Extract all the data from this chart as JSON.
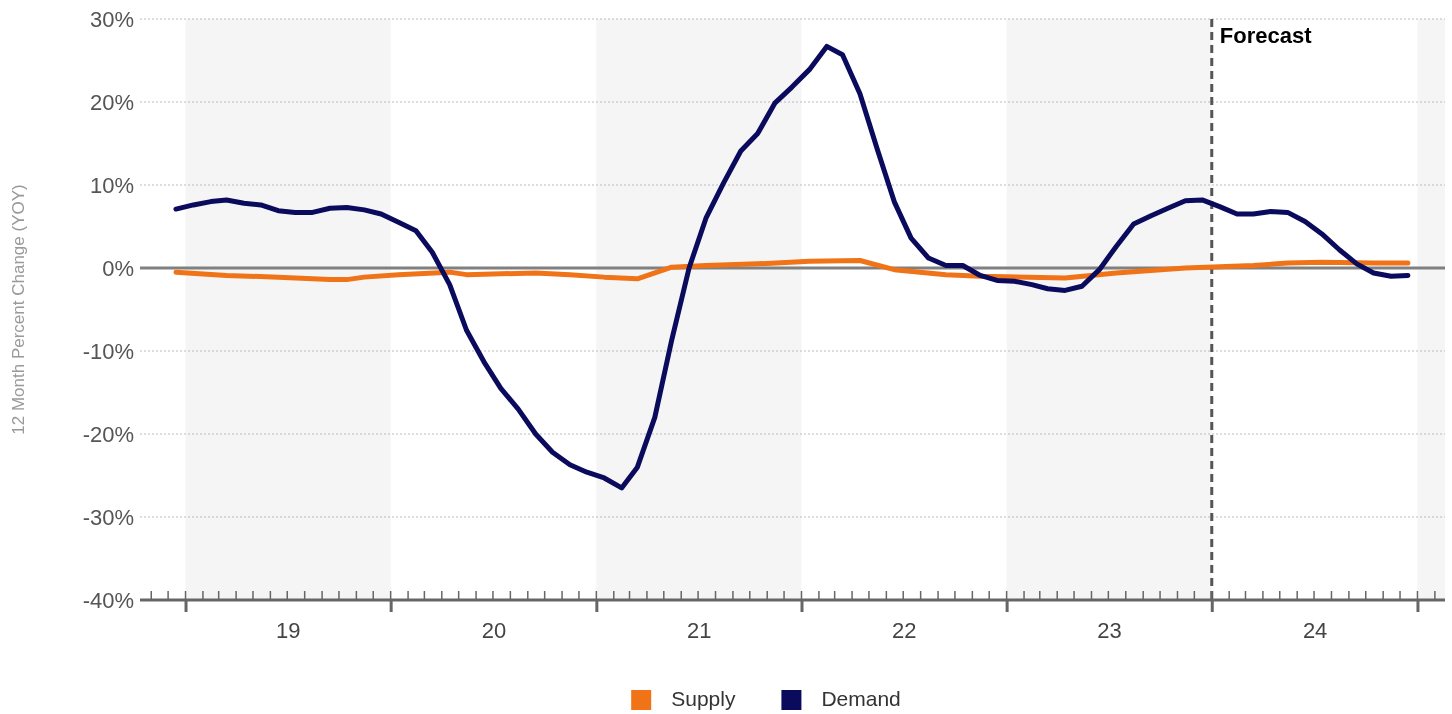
{
  "chart_data": {
    "type": "line",
    "ylabel": "12 Month Percent Change (YOY)",
    "xlim": [
      "2018-10-12",
      "2025-02-19"
    ],
    "xticks": [
      {
        "value": "2019-01-01",
        "label": null
      },
      {
        "value": "2019-07-02",
        "label": "19"
      },
      {
        "value": "2020-01-01",
        "label": null
      },
      {
        "value": "2020-07-02",
        "label": "20"
      },
      {
        "value": "2021-01-01",
        "label": null
      },
      {
        "value": "2021-07-02",
        "label": "21"
      },
      {
        "value": "2022-01-01",
        "label": null
      },
      {
        "value": "2022-07-02",
        "label": "22"
      },
      {
        "value": "2023-01-01",
        "label": null
      },
      {
        "value": "2023-07-02",
        "label": "23"
      },
      {
        "value": "2024-01-01",
        "label": null
      },
      {
        "value": "2024-07-02",
        "label": "24"
      },
      {
        "value": "2025-01-01",
        "label": null
      }
    ],
    "ylim": [
      -40,
      30
    ],
    "yticks": [
      {
        "value": -40,
        "label": "-40%"
      },
      {
        "value": -30,
        "label": "-30%"
      },
      {
        "value": -20,
        "label": "-20%"
      },
      {
        "value": -10,
        "label": "-10%"
      },
      {
        "value": 0,
        "label": "0%"
      },
      {
        "value": 10,
        "label": "10%"
      },
      {
        "value": 20,
        "label": "20%"
      },
      {
        "value": 30,
        "label": "30%"
      }
    ],
    "grid": "y",
    "legend": "bottom",
    "line_style": "solid",
    "marker": "none",
    "series": [
      {
        "name": "Supply",
        "color": "#f07318",
        "x": [
          "2018-12-15",
          "2019-03-15",
          "2019-06-15",
          "2019-09-15",
          "2019-10-15",
          "2019-11-15",
          "2020-01-15",
          "2020-04-15",
          "2020-05-15",
          "2020-09-15",
          "2020-11-15",
          "2021-01-15",
          "2021-03-15",
          "2021-05-15",
          "2021-07-15",
          "2021-10-15",
          "2022-01-15",
          "2022-04-15",
          "2022-06-15",
          "2022-09-15",
          "2022-11-15",
          "2023-04-15",
          "2023-07-15",
          "2023-11-15",
          "2024-03-15",
          "2024-05-15",
          "2024-07-15",
          "2024-10-15",
          "2024-12-15"
        ],
        "values": [
          -0.5,
          -0.9,
          -1.1,
          -1.4,
          -1.4,
          -1.1,
          -0.8,
          -0.5,
          -0.8,
          -0.6,
          -0.8,
          -1.1,
          -1.3,
          0.1,
          0.3,
          0.5,
          0.8,
          0.9,
          -0.2,
          -0.8,
          -1.0,
          -1.2,
          -0.6,
          0.0,
          0.3,
          0.6,
          0.7,
          0.6,
          0.6
        ]
      },
      {
        "name": "Demand",
        "color": "#0b0b5e",
        "x": [
          "2018-12-15",
          "2019-01-15",
          "2019-02-15",
          "2019-03-15",
          "2019-04-15",
          "2019-05-15",
          "2019-06-15",
          "2019-07-15",
          "2019-08-15",
          "2019-09-15",
          "2019-10-15",
          "2019-11-15",
          "2019-12-15",
          "2020-01-15",
          "2020-02-15",
          "2020-03-15",
          "2020-04-15",
          "2020-05-15",
          "2020-06-15",
          "2020-07-15",
          "2020-08-15",
          "2020-09-15",
          "2020-10-15",
          "2020-11-15",
          "2020-12-15",
          "2021-01-15",
          "2021-02-15",
          "2021-03-15",
          "2021-04-15",
          "2021-05-15",
          "2021-06-15",
          "2021-07-15",
          "2021-08-15",
          "2021-09-15",
          "2021-10-15",
          "2021-11-15",
          "2021-12-15",
          "2022-01-15",
          "2022-02-15",
          "2022-03-15",
          "2022-04-15",
          "2022-05-15",
          "2022-06-15",
          "2022-07-15",
          "2022-08-15",
          "2022-09-15",
          "2022-10-15",
          "2022-11-15",
          "2022-12-15",
          "2023-01-15",
          "2023-02-15",
          "2023-03-15",
          "2023-04-15",
          "2023-05-15",
          "2023-06-15",
          "2023-07-15",
          "2023-08-15",
          "2023-09-15",
          "2023-10-15",
          "2023-11-15",
          "2023-12-15",
          "2024-01-15",
          "2024-02-15",
          "2024-03-15",
          "2024-04-15",
          "2024-05-15",
          "2024-06-15",
          "2024-07-15",
          "2024-08-15",
          "2024-09-15",
          "2024-10-15",
          "2024-11-15",
          "2024-12-15"
        ],
        "values": [
          7.1,
          7.6,
          8.0,
          8.2,
          7.8,
          7.6,
          6.9,
          6.7,
          6.7,
          7.2,
          7.3,
          7.0,
          6.5,
          5.5,
          4.5,
          1.9,
          -2.0,
          -7.5,
          -11.3,
          -14.5,
          -17.0,
          -20.0,
          -22.2,
          -23.7,
          -24.6,
          -25.3,
          -26.5,
          -24.0,
          -18.0,
          -8.7,
          0.0,
          6.0,
          10.2,
          14.1,
          16.2,
          19.9,
          21.8,
          23.9,
          26.7,
          25.7,
          21.0,
          14.5,
          8.0,
          3.6,
          1.2,
          0.3,
          0.3,
          -0.9,
          -1.5,
          -1.6,
          -2.0,
          -2.5,
          -2.7,
          -2.2,
          -0.2,
          2.6,
          5.3,
          6.3,
          7.2,
          8.1,
          8.2,
          7.4,
          6.5,
          6.5,
          6.8,
          6.7,
          5.6,
          4.1,
          2.2,
          0.5,
          -0.6,
          -1.0,
          -0.9
        ]
      }
    ],
    "ref_lines": [
      {
        "axis": "y",
        "value": 0,
        "label": null,
        "color": "#808080",
        "line_style": "solid"
      },
      {
        "axis": "x",
        "value": "2024-01-01",
        "label": "Forecast",
        "color": "#555555",
        "line_style": "dashed"
      }
    ],
    "bands": [
      {
        "axis": "x",
        "from": "2019-01-01",
        "to": "2020-01-01",
        "label": null,
        "color": "#f5f5f5"
      },
      {
        "axis": "x",
        "from": "2021-01-01",
        "to": "2022-01-01",
        "label": null,
        "color": "#f5f5f5"
      },
      {
        "axis": "x",
        "from": "2023-01-01",
        "to": "2024-01-01",
        "label": null,
        "color": "#f5f5f5"
      },
      {
        "axis": "x",
        "from": "2025-01-01",
        "to": "2025-02-19",
        "label": null,
        "color": "#f5f5f5"
      }
    ]
  }
}
